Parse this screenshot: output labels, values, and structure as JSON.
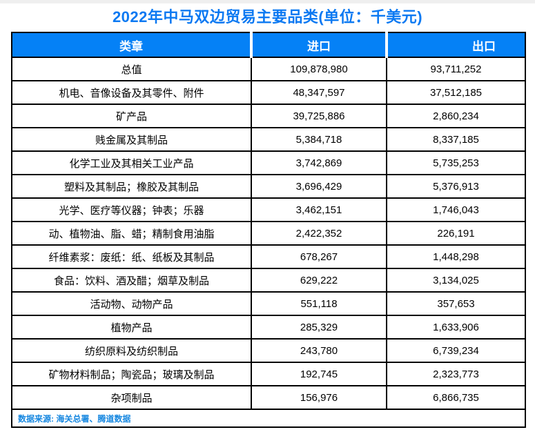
{
  "title": "2022年中马双边贸易主要品类(单位：千美元)",
  "table": {
    "headers": [
      "类章",
      "进口",
      "出口"
    ],
    "rows": [
      {
        "category": "总值",
        "import": "109,878,980",
        "export": "93,711,252"
      },
      {
        "category": "机电、音像设备及其零件、附件",
        "import": "48,347,597",
        "export": "37,512,185"
      },
      {
        "category": "矿产品",
        "import": "39,725,886",
        "export": "2,860,234"
      },
      {
        "category": "贱金属及其制品",
        "import": "5,384,718",
        "export": "8,337,185"
      },
      {
        "category": "化学工业及其相关工业产品",
        "import": "3,742,869",
        "export": "5,735,253"
      },
      {
        "category": "塑料及其制品；橡胶及其制品",
        "import": "3,696,429",
        "export": "5,376,913"
      },
      {
        "category": "光学、医疗等仪器；钟表；乐器",
        "import": "3,462,151",
        "export": "1,746,043"
      },
      {
        "category": "动、植物油、脂、蜡；精制食用油脂",
        "import": "2,422,352",
        "export": "226,191"
      },
      {
        "category": "纤维素浆：废纸：纸、纸板及其制品",
        "import": "678,267",
        "export": "1,448,298"
      },
      {
        "category": "食品：饮料、酒及醋；烟草及制品",
        "import": "629,222",
        "export": "3,134,025"
      },
      {
        "category": "活动物、动物产品",
        "import": "551,118",
        "export": "357,653"
      },
      {
        "category": "植物产品",
        "import": "285,329",
        "export": "1,633,906"
      },
      {
        "category": "纺织原料及纺织制品",
        "import": "243,780",
        "export": "6,739,234"
      },
      {
        "category": "矿物材料制品；陶瓷品；玻璃及制品",
        "import": "192,745",
        "export": "2,323,773"
      },
      {
        "category": "杂项制品",
        "import": "156,976",
        "export": "6,866,735"
      }
    ],
    "footer": "数据来源: 海关总署、腾道数据"
  },
  "chart_data": {
    "type": "table",
    "title": "2022年中马双边贸易主要品类(单位：千美元)",
    "columns": [
      "类章",
      "进口",
      "出口"
    ],
    "categories": [
      "总值",
      "机电、音像设备及其零件、附件",
      "矿产品",
      "贱金属及其制品",
      "化学工业及其相关工业产品",
      "塑料及其制品；橡胶及其制品",
      "光学、医疗等仪器；钟表；乐器",
      "动、植物油、脂、蜡；精制食用油脂",
      "纤维素浆：废纸：纸、纸板及其制品",
      "食品：饮料、酒及醋；烟草及制品",
      "活动物、动物产品",
      "植物产品",
      "纺织原料及纺织制品",
      "矿物材料制品；陶瓷品；玻璃及制品",
      "杂项制品"
    ],
    "series": [
      {
        "name": "进口",
        "values": [
          109878980,
          48347597,
          39725886,
          5384718,
          3742869,
          3696429,
          3462151,
          2422352,
          678267,
          629222,
          551118,
          285329,
          243780,
          192745,
          156976
        ]
      },
      {
        "name": "出口",
        "values": [
          93711252,
          37512185,
          2860234,
          8337185,
          5735253,
          5376913,
          1746043,
          226191,
          1448298,
          3134025,
          357653,
          1633906,
          6739234,
          2323773,
          6866735
        ]
      }
    ],
    "unit": "千美元",
    "source": "数据来源: 海关总署、腾道数据"
  },
  "colors": {
    "header-bg": "#0581f6",
    "header-text": "#ffffff",
    "title-color": "#0b79f2",
    "source-color": "#1687e0",
    "border-color": "#000000"
  }
}
